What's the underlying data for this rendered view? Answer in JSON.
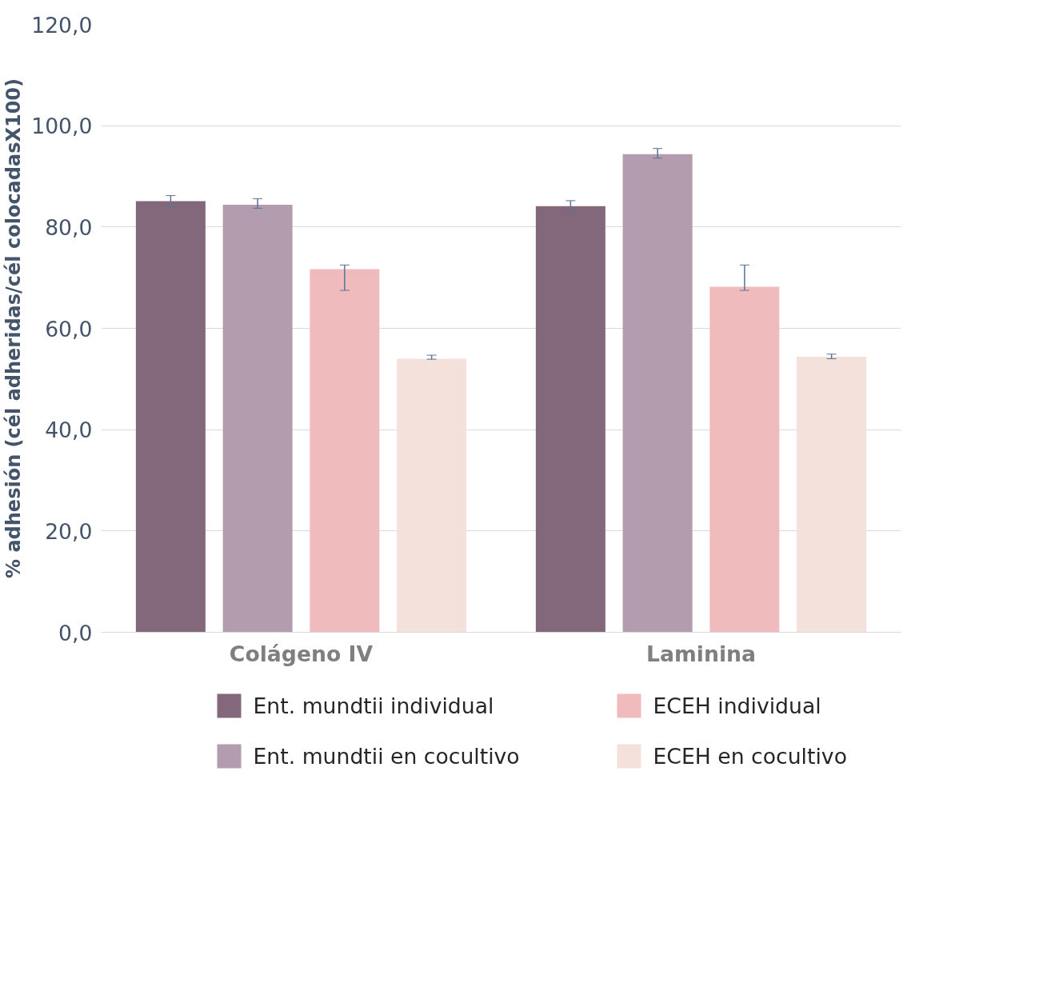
{
  "chart_data": {
    "type": "bar",
    "ylabel": "% adhesión (cél adheridas/cél colocadasX100)",
    "categories": [
      "Colágeno IV",
      "Laminina"
    ],
    "series": [
      {
        "name": "Ent. mundtii individual",
        "color": "#83677b",
        "values": [
          85.1,
          84.1
        ],
        "errors": [
          [
            84.0,
            86.2
          ],
          [
            83.1,
            85.2
          ]
        ]
      },
      {
        "name": "Ent. mundtii en cocultivo",
        "color": "#b39cae",
        "values": [
          84.4,
          94.4
        ],
        "errors": [
          [
            83.7,
            85.6
          ],
          [
            93.6,
            95.5
          ]
        ]
      },
      {
        "name": "ECEH individual",
        "color": "#efbbbd",
        "values": [
          71.7,
          68.2
        ],
        "errors": [
          [
            67.5,
            72.5
          ],
          [
            67.5,
            72.5
          ]
        ]
      },
      {
        "name": "ECEH en cocultivo",
        "color": "#f5e1dc",
        "values": [
          54.0,
          54.4
        ],
        "errors": [
          [
            53.9,
            54.7
          ],
          [
            54.0,
            54.9
          ]
        ]
      }
    ],
    "ylim": [
      0,
      120
    ],
    "yticks": [
      {
        "value": 0,
        "label": "0,0"
      },
      {
        "value": 20,
        "label": "20,0"
      },
      {
        "value": 40,
        "label": "40,0"
      },
      {
        "value": 60,
        "label": "60,0"
      },
      {
        "value": 80,
        "label": "80,0"
      },
      {
        "value": 100,
        "label": "100,0"
      },
      {
        "value": 120,
        "label": "120,0"
      }
    ],
    "grid": "y",
    "legend": "bottom"
  }
}
